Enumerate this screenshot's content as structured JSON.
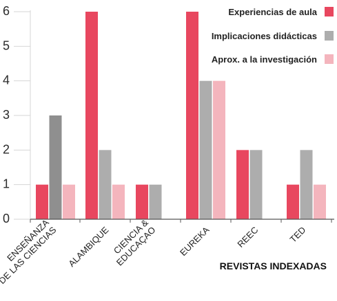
{
  "chart_data": {
    "type": "bar",
    "categories": [
      [
        "ENSEÑANZA",
        "DE LAS CIENCIAS"
      ],
      [
        "ALAMBIQUE"
      ],
      [
        "CIENCIA &",
        "EDUCAÇAO"
      ],
      [
        "EUREKA"
      ],
      [
        "REEC"
      ],
      [
        "TED"
      ]
    ],
    "series": [
      {
        "name": "Experiencias de aula",
        "color": "#e8475f",
        "values": [
          1,
          6,
          1,
          6,
          2,
          1
        ]
      },
      {
        "name": "Implicaciones didácticas",
        "color": "#adadad",
        "values": [
          3,
          2,
          1,
          4,
          2,
          2
        ]
      },
      {
        "name": "Aprox. a la investigación",
        "color": "#f4b5bd",
        "values": [
          1,
          1,
          0,
          4,
          0,
          1
        ]
      }
    ],
    "first_bar_color_override": {
      "series": 2,
      "category": 0,
      "color": "#8f8f8f"
    },
    "xlabel": "REVISTAS INDEXADAS",
    "ylabel": "",
    "ylim": [
      0,
      6
    ],
    "yticks": [
      "0",
      "1",
      "2",
      "3",
      "4",
      "5",
      "6"
    ],
    "grid": false,
    "legend_position": "top-right"
  }
}
